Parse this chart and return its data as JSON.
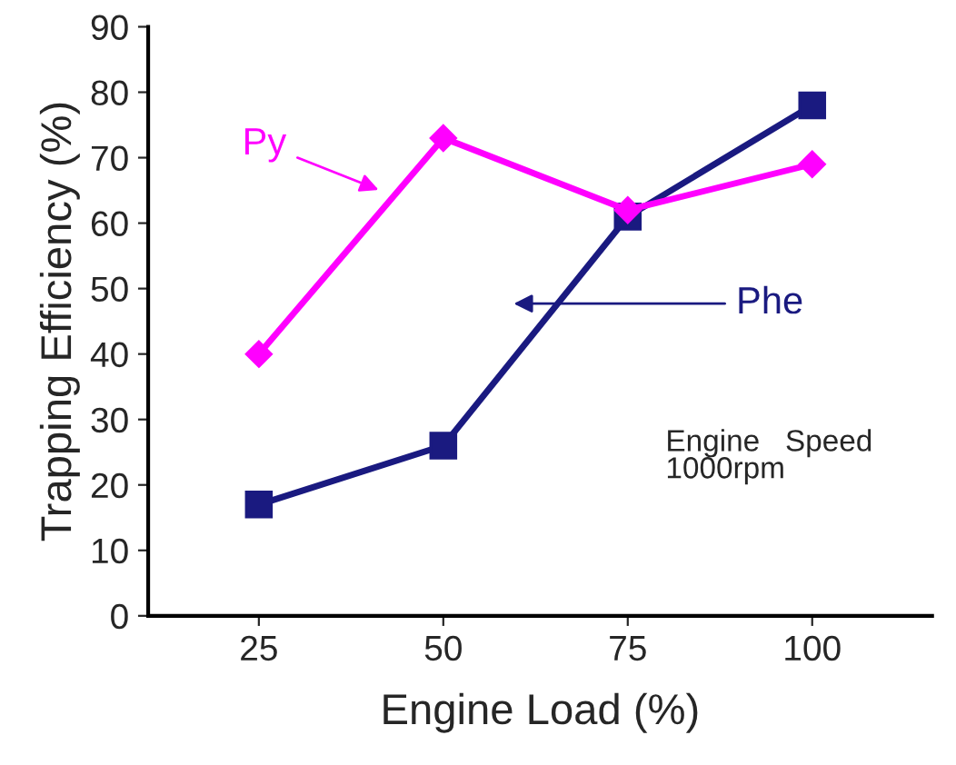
{
  "chart_data": {
    "type": "line",
    "xlabel": "Engine Load (%)",
    "ylabel": "Trapping Efficiency (%)",
    "categories": [
      "25",
      "50",
      "75",
      "100"
    ],
    "series": [
      {
        "name": "Py",
        "color": "#ff00ff",
        "marker": "diamond",
        "values": [
          40,
          73,
          62,
          69
        ]
      },
      {
        "name": "Phe",
        "color": "#1a1a80",
        "marker": "square",
        "values": [
          17,
          26,
          61,
          78
        ]
      }
    ],
    "ylim": [
      0,
      90
    ],
    "yticks": [
      0,
      10,
      20,
      30,
      40,
      50,
      60,
      70,
      80,
      90
    ],
    "annotations": [
      "Engine   Speed\n1000rpm"
    ],
    "grid": false,
    "legend": false
  }
}
